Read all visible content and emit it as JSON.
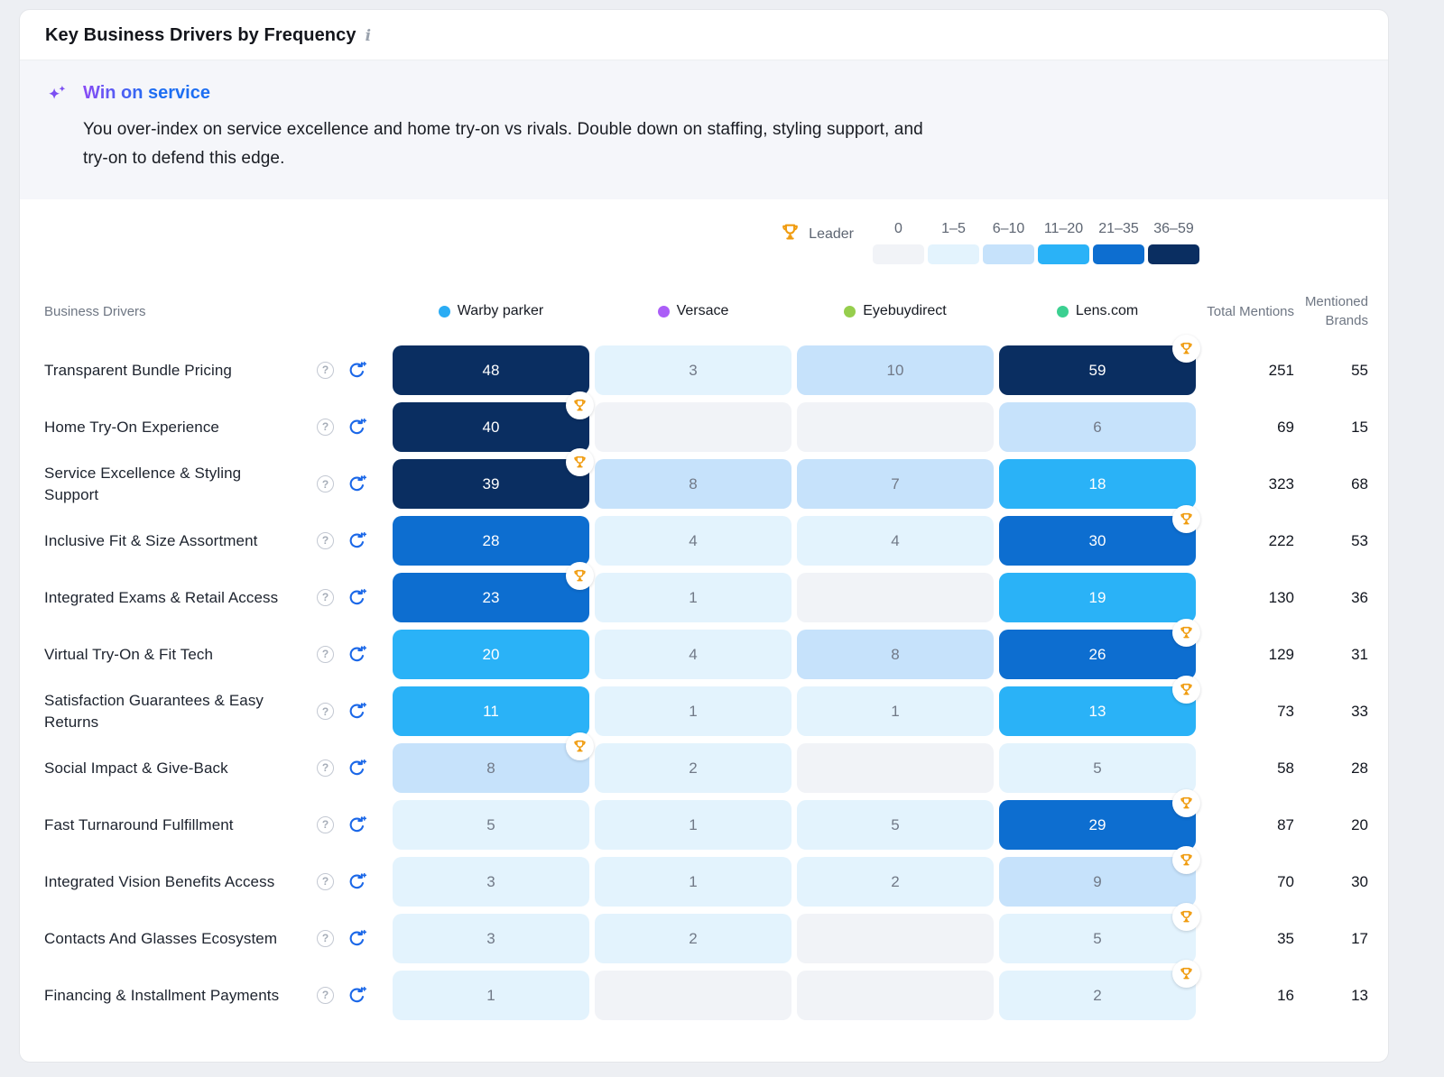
{
  "header": {
    "title": "Key Business Drivers by Frequency",
    "info_icon": "i"
  },
  "insight": {
    "title": "Win on service",
    "body": "You over-index on service excellence and home try-on vs rivals. Double down on staffing, styling support, and try-on to defend this edge."
  },
  "legend": {
    "leader_label": "Leader"
  },
  "table_headers": {
    "drivers": "Business Drivers",
    "total_mentions": "Total Mentions",
    "mentioned_brands": "Mentioned Brands"
  },
  "colors": {
    "page_bg": "#edeff3",
    "card_border": "#e4e6ea",
    "insight_bg": "#f5f6fa",
    "trophy": "#f09c10",
    "refresh_icon": "#1a67e8",
    "help_icon": "#a6adb8",
    "insight_gradient_from": "#8a4bf5",
    "insight_gradient_to": "#1d6ef2",
    "muted_text": "#6e7683",
    "dark_text": "#161a22"
  },
  "chart_data": {
    "type": "heatmap",
    "title": "Key Business Drivers by Frequency",
    "legend_position": "top-right",
    "value_range": [
      0,
      59
    ],
    "buckets": [
      {
        "label": "0",
        "color": "#f1f3f7"
      },
      {
        "label": "1–5",
        "color": "#e3f3fd"
      },
      {
        "label": "6–10",
        "color": "#c6e2fb"
      },
      {
        "label": "11–20",
        "color": "#2ab2f7"
      },
      {
        "label": "21–35",
        "color": "#0d6ed0"
      },
      {
        "label": "36–59",
        "color": "#0a2e61"
      }
    ],
    "columns": [
      {
        "name": "Warby parker",
        "color": "#2aacf4"
      },
      {
        "name": "Versace",
        "color": "#ab5ef7"
      },
      {
        "name": "Eyebuydirect",
        "color": "#96ce4d"
      },
      {
        "name": "Lens.com",
        "color": "#3bd091"
      }
    ],
    "rows": [
      {
        "label": "Transparent Bundle Pricing",
        "values": [
          48,
          3,
          10,
          59
        ],
        "leader_col": 3,
        "total_mentions": 251,
        "mentioned_brands": 55
      },
      {
        "label": "Home Try-On Experience",
        "values": [
          40,
          null,
          null,
          6
        ],
        "leader_col": 0,
        "total_mentions": 69,
        "mentioned_brands": 15
      },
      {
        "label": "Service Excellence & Styling Support",
        "values": [
          39,
          8,
          7,
          18
        ],
        "leader_col": 0,
        "total_mentions": 323,
        "mentioned_brands": 68
      },
      {
        "label": "Inclusive Fit & Size Assortment",
        "values": [
          28,
          4,
          4,
          30
        ],
        "leader_col": 3,
        "total_mentions": 222,
        "mentioned_brands": 53
      },
      {
        "label": "Integrated Exams & Retail Access",
        "values": [
          23,
          1,
          null,
          19
        ],
        "leader_col": 0,
        "total_mentions": 130,
        "mentioned_brands": 36
      },
      {
        "label": "Virtual Try-On & Fit Tech",
        "values": [
          20,
          4,
          8,
          26
        ],
        "leader_col": 3,
        "total_mentions": 129,
        "mentioned_brands": 31
      },
      {
        "label": "Satisfaction Guarantees & Easy Returns",
        "values": [
          11,
          1,
          1,
          13
        ],
        "leader_col": 3,
        "total_mentions": 73,
        "mentioned_brands": 33
      },
      {
        "label": "Social Impact & Give-Back",
        "values": [
          8,
          2,
          null,
          5
        ],
        "leader_col": 0,
        "total_mentions": 58,
        "mentioned_brands": 28
      },
      {
        "label": "Fast Turnaround Fulfillment",
        "values": [
          5,
          1,
          5,
          29
        ],
        "leader_col": 3,
        "total_mentions": 87,
        "mentioned_brands": 20
      },
      {
        "label": "Integrated Vision Benefits Access",
        "values": [
          3,
          1,
          2,
          9
        ],
        "leader_col": 3,
        "total_mentions": 70,
        "mentioned_brands": 30
      },
      {
        "label": "Contacts And Glasses Ecosystem",
        "values": [
          3,
          2,
          null,
          5
        ],
        "leader_col": 3,
        "total_mentions": 35,
        "mentioned_brands": 17
      },
      {
        "label": "Financing & Installment Payments",
        "values": [
          1,
          null,
          null,
          2
        ],
        "leader_col": 3,
        "total_mentions": 16,
        "mentioned_brands": 13
      }
    ]
  }
}
